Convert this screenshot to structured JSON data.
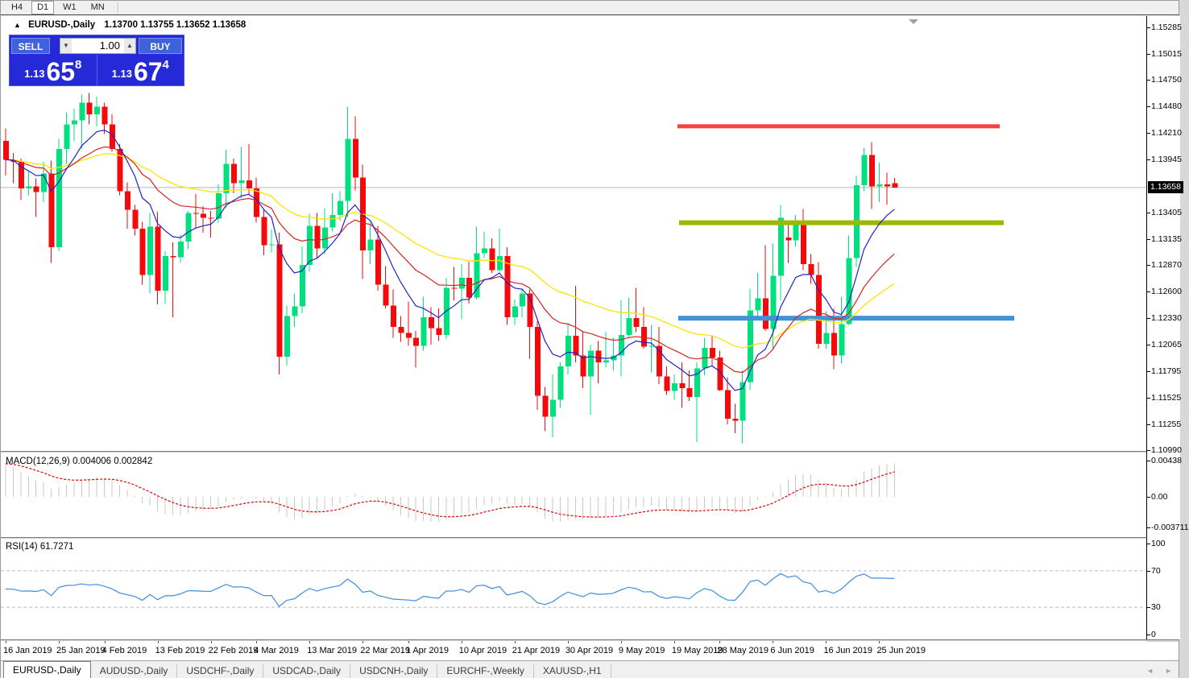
{
  "toolbar": {
    "timeframes": [
      "H4",
      "D1",
      "W1",
      "MN"
    ],
    "active": "D1"
  },
  "chart": {
    "collapse_icon": "▲",
    "symbol_label": "EURUSD-,Daily",
    "ohlc_text": "1.13700 1.13755 1.13652 1.13658"
  },
  "trade_panel": {
    "sell_label": "SELL",
    "buy_label": "BUY",
    "volume": "1.00",
    "vol_down_icon": "▼",
    "vol_up_icon": "▲",
    "sell": {
      "prefix": "1.13",
      "big": "65",
      "sup": "8"
    },
    "buy": {
      "prefix": "1.13",
      "big": "67",
      "sup": "4"
    }
  },
  "price_axis": {
    "current": "1.13658",
    "ticks": [
      "1.15285",
      "1.15015",
      "1.14750",
      "1.14480",
      "1.14210",
      "1.13945",
      "1.13405",
      "1.13135",
      "1.12870",
      "1.12600",
      "1.12330",
      "1.12065",
      "1.11795",
      "1.11525",
      "1.11255",
      "1.10990"
    ]
  },
  "indicators": {
    "macd": {
      "label": "MACD(12,26,9) 0.004006 0.002842",
      "axis": [
        "0.00438",
        "0.00",
        "-0.003711"
      ],
      "axis_values": [
        0.00438,
        0,
        -0.003711
      ]
    },
    "rsi": {
      "label": "RSI(14) 61.7271",
      "axis": [
        "100",
        "70",
        "30",
        "0"
      ],
      "axis_values": [
        100,
        70,
        30,
        0
      ],
      "levels": [
        70,
        30
      ]
    }
  },
  "chart_data": {
    "type": "candlestick",
    "symbol": "EURUSD-",
    "timeframe": "Daily",
    "ylim": [
      1.1099,
      1.15285
    ],
    "x_tick_labels": [
      "16 Jan 2019",
      "25 Jan 2019",
      "4 Feb 2019",
      "13 Feb 2019",
      "22 Feb 2019",
      "4 Mar 2019",
      "13 Mar 2019",
      "22 Mar 2019",
      "1 Apr 2019",
      "10 Apr 2019",
      "21 Apr 2019",
      "30 Apr 2019",
      "9 May 2019",
      "19 May 2019",
      "28 May 2019",
      "6 Jun 2019",
      "16 Jun 2019",
      "25 Jun 2019"
    ],
    "x_tick_indices": [
      0,
      7,
      13,
      20,
      27,
      33,
      40,
      47,
      53,
      60,
      67,
      74,
      81,
      88,
      94,
      101,
      108,
      115
    ],
    "hlines": [
      {
        "price": 1.1428,
        "color": "#f9423f",
        "thickness": 5,
        "x1": 840,
        "x2": 1240
      },
      {
        "price": 1.133,
        "color": "#9cb800",
        "thickness": 6,
        "x1": 842,
        "x2": 1245
      },
      {
        "price": 1.1233,
        "color": "#4193d7",
        "thickness": 6,
        "x1": 841,
        "x2": 1258
      }
    ],
    "current_price": 1.13658,
    "candles": [
      [
        1.1413,
        1.1426,
        1.1378,
        1.1394
      ],
      [
        1.1394,
        1.1401,
        1.137,
        1.1392
      ],
      [
        1.1392,
        1.1395,
        1.1353,
        1.1365
      ],
      [
        1.1365,
        1.1382,
        1.1358,
        1.1367
      ],
      [
        1.1367,
        1.1375,
        1.1336,
        1.1361
      ],
      [
        1.1361,
        1.1392,
        1.1351,
        1.138
      ],
      [
        1.138,
        1.1393,
        1.1289,
        1.1305
      ],
      [
        1.1305,
        1.1415,
        1.1301,
        1.1405
      ],
      [
        1.1405,
        1.1442,
        1.139,
        1.143
      ],
      [
        1.143,
        1.1446,
        1.1413,
        1.1434
      ],
      [
        1.1434,
        1.146,
        1.1405,
        1.1452
      ],
      [
        1.1452,
        1.1462,
        1.143,
        1.144
      ],
      [
        1.144,
        1.1458,
        1.1428,
        1.1448
      ],
      [
        1.1448,
        1.1452,
        1.142,
        1.143
      ],
      [
        1.143,
        1.144,
        1.1402,
        1.1405
      ],
      [
        1.1405,
        1.141,
        1.1358,
        1.1362
      ],
      [
        1.1362,
        1.1371,
        1.1324,
        1.1343
      ],
      [
        1.1343,
        1.1348,
        1.1317,
        1.1324
      ],
      [
        1.1324,
        1.1331,
        1.1267,
        1.1277
      ],
      [
        1.1277,
        1.134,
        1.1258,
        1.1326
      ],
      [
        1.1326,
        1.1341,
        1.1247,
        1.1261
      ],
      [
        1.1261,
        1.1301,
        1.1248,
        1.1296
      ],
      [
        1.1296,
        1.131,
        1.1234,
        1.1295
      ],
      [
        1.1295,
        1.1318,
        1.1289,
        1.1311
      ],
      [
        1.1311,
        1.1342,
        1.1303,
        1.134
      ],
      [
        1.134,
        1.1359,
        1.1324,
        1.1339
      ],
      [
        1.1339,
        1.1347,
        1.132,
        1.1335
      ],
      [
        1.1335,
        1.1342,
        1.1315,
        1.1334
      ],
      [
        1.1334,
        1.1369,
        1.133,
        1.136
      ],
      [
        1.136,
        1.1404,
        1.1345,
        1.139
      ],
      [
        1.139,
        1.1395,
        1.136,
        1.137
      ],
      [
        1.137,
        1.1407,
        1.1355,
        1.1373
      ],
      [
        1.1373,
        1.141,
        1.1358,
        1.1365
      ],
      [
        1.1365,
        1.1376,
        1.133,
        1.1336
      ],
      [
        1.1336,
        1.1344,
        1.1297,
        1.1307
      ],
      [
        1.1307,
        1.1323,
        1.13,
        1.1308
      ],
      [
        1.1308,
        1.132,
        1.1176,
        1.1194
      ],
      [
        1.1194,
        1.1246,
        1.1185,
        1.1235
      ],
      [
        1.1235,
        1.1258,
        1.1224,
        1.1245
      ],
      [
        1.1245,
        1.1306,
        1.1238,
        1.1287
      ],
      [
        1.1287,
        1.1339,
        1.128,
        1.1327
      ],
      [
        1.1327,
        1.134,
        1.1294,
        1.1304
      ],
      [
        1.1304,
        1.1345,
        1.1298,
        1.1325
      ],
      [
        1.1325,
        1.136,
        1.1321,
        1.1338
      ],
      [
        1.1338,
        1.1362,
        1.1332,
        1.1352
      ],
      [
        1.1352,
        1.1448,
        1.1336,
        1.1415
      ],
      [
        1.1415,
        1.1438,
        1.1363,
        1.1376
      ],
      [
        1.1376,
        1.1389,
        1.1273,
        1.1302
      ],
      [
        1.1302,
        1.133,
        1.1288,
        1.1313
      ],
      [
        1.1313,
        1.1327,
        1.1261,
        1.1267
      ],
      [
        1.1267,
        1.1286,
        1.1243,
        1.1246
      ],
      [
        1.1246,
        1.1262,
        1.1213,
        1.1224
      ],
      [
        1.1224,
        1.1235,
        1.1209,
        1.1218
      ],
      [
        1.1218,
        1.125,
        1.1205,
        1.1213
      ],
      [
        1.1213,
        1.122,
        1.1183,
        1.1205
      ],
      [
        1.1205,
        1.1255,
        1.12,
        1.1234
      ],
      [
        1.1234,
        1.1244,
        1.1206,
        1.1223
      ],
      [
        1.1223,
        1.1243,
        1.121,
        1.1216
      ],
      [
        1.1216,
        1.1274,
        1.1212,
        1.1264
      ],
      [
        1.1264,
        1.1285,
        1.1251,
        1.1263
      ],
      [
        1.1263,
        1.1288,
        1.1232,
        1.1274
      ],
      [
        1.1274,
        1.129,
        1.1248,
        1.1254
      ],
      [
        1.1254,
        1.1326,
        1.1252,
        1.1299
      ],
      [
        1.1299,
        1.1321,
        1.1294,
        1.1304
      ],
      [
        1.1304,
        1.1314,
        1.1279,
        1.1282
      ],
      [
        1.1282,
        1.1324,
        1.128,
        1.1296
      ],
      [
        1.1296,
        1.1305,
        1.1226,
        1.1234
      ],
      [
        1.1234,
        1.1252,
        1.1226,
        1.1245
      ],
      [
        1.1245,
        1.1264,
        1.1234,
        1.1258
      ],
      [
        1.1258,
        1.1262,
        1.1192,
        1.1224
      ],
      [
        1.1224,
        1.123,
        1.114,
        1.1154
      ],
      [
        1.1154,
        1.1163,
        1.1118,
        1.1133
      ],
      [
        1.1133,
        1.1176,
        1.1112,
        1.115
      ],
      [
        1.115,
        1.1188,
        1.1142,
        1.1184
      ],
      [
        1.1184,
        1.1227,
        1.1176,
        1.1215
      ],
      [
        1.1215,
        1.1266,
        1.1188,
        1.1195
      ],
      [
        1.1195,
        1.122,
        1.1162,
        1.1174
      ],
      [
        1.1174,
        1.1206,
        1.1135,
        1.12
      ],
      [
        1.12,
        1.121,
        1.1167,
        1.1188
      ],
      [
        1.1188,
        1.1219,
        1.1183,
        1.119
      ],
      [
        1.119,
        1.1213,
        1.118,
        1.1195
      ],
      [
        1.1195,
        1.1251,
        1.1174,
        1.1216
      ],
      [
        1.1216,
        1.1254,
        1.1214,
        1.1233
      ],
      [
        1.1233,
        1.1264,
        1.1219,
        1.1224
      ],
      [
        1.1224,
        1.1244,
        1.1202,
        1.1204
      ],
      [
        1.1204,
        1.1226,
        1.1178,
        1.1205
      ],
      [
        1.1205,
        1.1224,
        1.1166,
        1.1174
      ],
      [
        1.1174,
        1.1184,
        1.1155,
        1.1159
      ],
      [
        1.1159,
        1.1176,
        1.115,
        1.1167
      ],
      [
        1.1167,
        1.1188,
        1.1142,
        1.1162
      ],
      [
        1.1162,
        1.118,
        1.1149,
        1.1153
      ],
      [
        1.1153,
        1.1188,
        1.1107,
        1.1182
      ],
      [
        1.1182,
        1.1213,
        1.1175,
        1.1203
      ],
      [
        1.1203,
        1.1215,
        1.1184,
        1.1193
      ],
      [
        1.1193,
        1.12,
        1.1159,
        1.116
      ],
      [
        1.116,
        1.1173,
        1.1125,
        1.1131
      ],
      [
        1.1131,
        1.1146,
        1.1116,
        1.1129
      ],
      [
        1.1129,
        1.118,
        1.1106,
        1.1168
      ],
      [
        1.1168,
        1.1263,
        1.116,
        1.1241
      ],
      [
        1.1241,
        1.1279,
        1.1231,
        1.1253
      ],
      [
        1.1253,
        1.1307,
        1.122,
        1.1222
      ],
      [
        1.1222,
        1.1309,
        1.1201,
        1.1276
      ],
      [
        1.1276,
        1.1348,
        1.1251,
        1.1335
      ],
      [
        1.1315,
        1.1332,
        1.1289,
        1.1312
      ],
      [
        1.1312,
        1.1338,
        1.1306,
        1.1328
      ],
      [
        1.1328,
        1.1344,
        1.1282,
        1.1288
      ],
      [
        1.1288,
        1.1298,
        1.1268,
        1.1277
      ],
      [
        1.1277,
        1.129,
        1.1202,
        1.1207
      ],
      [
        1.1207,
        1.124,
        1.1202,
        1.1218
      ],
      [
        1.1218,
        1.1243,
        1.1181,
        1.1195
      ],
      [
        1.1195,
        1.1255,
        1.1187,
        1.1227
      ],
      [
        1.1227,
        1.1317,
        1.1226,
        1.1294
      ],
      [
        1.1294,
        1.1378,
        1.1285,
        1.1368
      ],
      [
        1.1368,
        1.1406,
        1.1362,
        1.1399
      ],
      [
        1.1399,
        1.1412,
        1.1344,
        1.1367
      ],
      [
        1.1367,
        1.1391,
        1.1351,
        1.1369
      ],
      [
        1.1369,
        1.1381,
        1.1348,
        1.1367
      ],
      [
        1.137,
        1.13755,
        1.13652,
        1.13658
      ]
    ]
  },
  "colors": {
    "bull": "#00e07e",
    "bear": "#f40a0a",
    "ma_fast": "#2222c8",
    "ma_mid": "#d42424",
    "ma_slow": "#ffe400",
    "macd_hist": "#c8c8c8",
    "macd_signal": "#e00000",
    "rsi_line": "#3f8edc",
    "rsi_level": "#bbbbbb",
    "price_line": "#b8b8b8",
    "shift_marker": "#a0a0a0"
  },
  "bottom_tabs": {
    "tabs": [
      {
        "label": "EURUSD-,Daily",
        "active": true
      },
      {
        "label": "AUDUSD-,Daily",
        "active": false
      },
      {
        "label": "USDCHF-,Daily",
        "active": false
      },
      {
        "label": "USDCAD-,Daily",
        "active": false
      },
      {
        "label": "USDCNH-,Daily",
        "active": false
      },
      {
        "label": "EURCHF-,Weekly",
        "active": false
      },
      {
        "label": "XAUUSD-,H1",
        "active": false
      }
    ],
    "scroll_left": "◄",
    "scroll_right": "►"
  }
}
